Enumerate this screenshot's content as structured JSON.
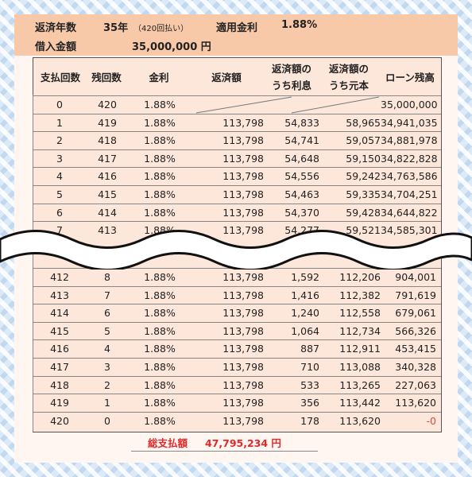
{
  "header": {
    "term_label": "返済年数",
    "term_value": "35年",
    "term_note": "（420回払い）",
    "rate_label": "適用金利",
    "rate_value": "1.88%",
    "principal_label": "借入金額",
    "principal_value": "35,000,000 円"
  },
  "table": {
    "columns": [
      "支払回数",
      "残回数",
      "金利",
      "返済額",
      "返済額の",
      "うち利息",
      "返済額の",
      "うち元本",
      "ローン残高"
    ],
    "top_rows": [
      [
        "0",
        "420",
        "1.88%",
        "",
        "",
        "",
        "35,000,000"
      ],
      [
        "1",
        "419",
        "1.88%",
        "113,798",
        "54,833",
        "58,965",
        "34,941,035"
      ],
      [
        "2",
        "418",
        "1.88%",
        "113,798",
        "54,741",
        "59,057",
        "34,881,978"
      ],
      [
        "3",
        "417",
        "1.88%",
        "113,798",
        "54,648",
        "59,150",
        "34,822,828"
      ],
      [
        "4",
        "416",
        "1.88%",
        "113,798",
        "54,556",
        "59,242",
        "34,763,586"
      ],
      [
        "5",
        "415",
        "1.88%",
        "113,798",
        "54,463",
        "59,335",
        "34,704,251"
      ],
      [
        "6",
        "414",
        "1.88%",
        "113,798",
        "54,370",
        "59,428",
        "34,644,822"
      ],
      [
        "7",
        "413",
        "1.88%",
        "113,798",
        "54,277",
        "59,521",
        "34,585,301"
      ]
    ],
    "bottom_rows": [
      [
        "412",
        "8",
        "1.88%",
        "113,798",
        "1,592",
        "112,206",
        "904,001"
      ],
      [
        "413",
        "7",
        "1.88%",
        "113,798",
        "1,416",
        "112,382",
        "791,619"
      ],
      [
        "414",
        "6",
        "1.88%",
        "113,798",
        "1,240",
        "112,558",
        "679,061"
      ],
      [
        "415",
        "5",
        "1.88%",
        "113,798",
        "1,064",
        "112,734",
        "566,326"
      ],
      [
        "416",
        "4",
        "1.88%",
        "113,798",
        "887",
        "112,911",
        "453,415"
      ],
      [
        "417",
        "3",
        "1.88%",
        "113,798",
        "710",
        "113,088",
        "340,328"
      ],
      [
        "418",
        "2",
        "1.88%",
        "113,798",
        "533",
        "113,265",
        "227,063"
      ],
      [
        "419",
        "1",
        "1.88%",
        "113,798",
        "356",
        "113,442",
        "113,620"
      ],
      [
        "420",
        "0",
        "1.88%",
        "113,798",
        "178",
        "113,620",
        "-0"
      ]
    ]
  },
  "total": {
    "label": "総支払額",
    "value": "47,795,234 円"
  },
  "colors": {
    "header_band": "#f8c9a8",
    "table_bg": "#fde6da",
    "total_text": "#e02a2a",
    "negative": "#e04848"
  }
}
